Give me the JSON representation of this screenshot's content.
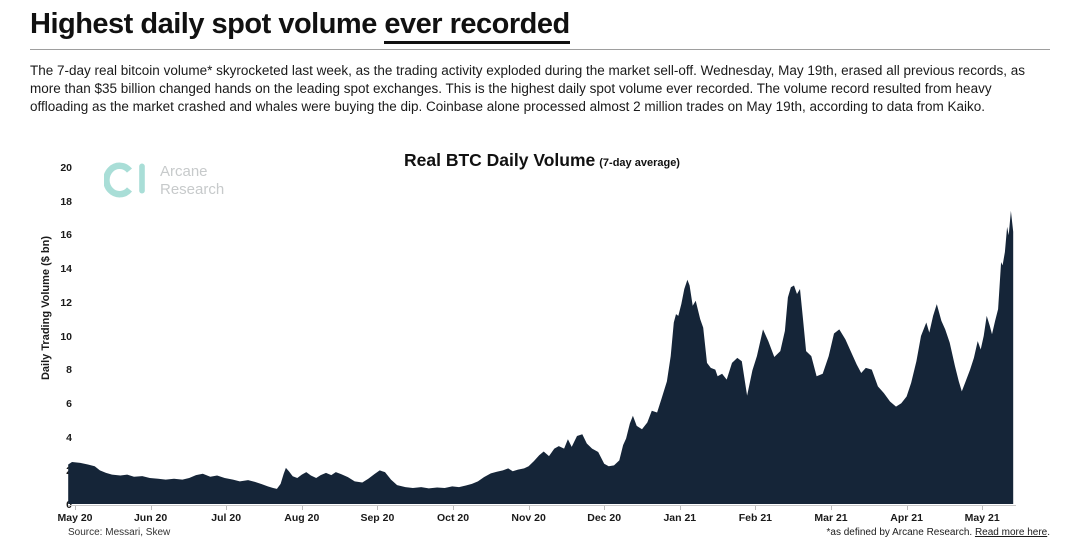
{
  "header": {
    "title_normal": "Highest daily spot volume ",
    "title_underlined": "ever recorded",
    "paragraph": "The 7-day real bitcoin volume* skyrocketed last week, as the trading activity exploded during the market sell-off. Wednesday, May 19th, erased all previous records, as more than $35 billion changed hands on the leading spot exchanges. This is the highest daily spot volume ever recorded. The volume record resulted from heavy offloading as the market crashed and whales were buying the dip. Coinbase alone processed almost 2 million trades on May 19th, according to data from Kaiko."
  },
  "logo": {
    "line1": "Arcane",
    "line2": "Research",
    "icon_color": "#a9ded7",
    "text_color": "#c7cacb"
  },
  "chart": {
    "title": "Real BTC Daily Volume",
    "subtitle": "(7-day average)",
    "source": "Source: Messari, Skew",
    "footnote_text": "*as defined by Arcane Research. ",
    "footnote_link": "Read more here",
    "footnote_period": "."
  },
  "chart_data": {
    "type": "area",
    "title": "Real BTC Daily Volume (7-day average)",
    "xlabel": "",
    "ylabel": "Daily Trading Volume ($ bn)",
    "ylim": [
      0,
      20
    ],
    "yticks": [
      0,
      2,
      4,
      6,
      8,
      10,
      12,
      14,
      16,
      18,
      20
    ],
    "categories": [
      "May 20",
      "Jun 20",
      "Jul 20",
      "Aug 20",
      "Sep 20",
      "Oct 20",
      "Nov 20",
      "Dec 20",
      "Jan 21",
      "Feb 21",
      "Mar 21",
      "Apr 21",
      "May 21"
    ],
    "x_unit": "months since May 2020 tick (fractional)",
    "fill_color": "#152538",
    "grid": false,
    "legend": "none",
    "peak_value": 17.45,
    "points": [
      [
        -0.09,
        2.35
      ],
      [
        -0.04,
        2.5
      ],
      [
        0.07,
        2.45
      ],
      [
        0.17,
        2.35
      ],
      [
        0.26,
        2.25
      ],
      [
        0.33,
        2.0
      ],
      [
        0.41,
        1.85
      ],
      [
        0.49,
        1.75
      ],
      [
        0.6,
        1.7
      ],
      [
        0.69,
        1.75
      ],
      [
        0.78,
        1.62
      ],
      [
        0.89,
        1.66
      ],
      [
        0.99,
        1.55
      ],
      [
        1.1,
        1.5
      ],
      [
        1.2,
        1.45
      ],
      [
        1.31,
        1.5
      ],
      [
        1.42,
        1.45
      ],
      [
        1.51,
        1.55
      ],
      [
        1.6,
        1.72
      ],
      [
        1.69,
        1.8
      ],
      [
        1.79,
        1.62
      ],
      [
        1.88,
        1.7
      ],
      [
        1.98,
        1.55
      ],
      [
        2.09,
        1.45
      ],
      [
        2.18,
        1.35
      ],
      [
        2.29,
        1.42
      ],
      [
        2.38,
        1.32
      ],
      [
        2.47,
        1.18
      ],
      [
        2.55,
        1.05
      ],
      [
        2.62,
        0.95
      ],
      [
        2.67,
        0.9
      ],
      [
        2.72,
        1.2
      ],
      [
        2.76,
        1.8
      ],
      [
        2.79,
        2.15
      ],
      [
        2.83,
        1.95
      ],
      [
        2.88,
        1.65
      ],
      [
        2.94,
        1.55
      ],
      [
        3.0,
        1.75
      ],
      [
        3.06,
        1.9
      ],
      [
        3.12,
        1.7
      ],
      [
        3.19,
        1.55
      ],
      [
        3.25,
        1.72
      ],
      [
        3.32,
        1.85
      ],
      [
        3.39,
        1.72
      ],
      [
        3.45,
        1.9
      ],
      [
        3.52,
        1.78
      ],
      [
        3.61,
        1.6
      ],
      [
        3.7,
        1.35
      ],
      [
        3.8,
        1.28
      ],
      [
        3.88,
        1.5
      ],
      [
        3.96,
        1.78
      ],
      [
        4.03,
        2.0
      ],
      [
        4.1,
        1.9
      ],
      [
        4.18,
        1.45
      ],
      [
        4.26,
        1.12
      ],
      [
        4.37,
        1.0
      ],
      [
        4.47,
        0.95
      ],
      [
        4.58,
        1.0
      ],
      [
        4.68,
        0.93
      ],
      [
        4.79,
        0.98
      ],
      [
        4.89,
        0.95
      ],
      [
        4.99,
        1.05
      ],
      [
        5.08,
        1.0
      ],
      [
        5.17,
        1.1
      ],
      [
        5.25,
        1.2
      ],
      [
        5.33,
        1.35
      ],
      [
        5.41,
        1.6
      ],
      [
        5.5,
        1.82
      ],
      [
        5.58,
        1.92
      ],
      [
        5.66,
        2.0
      ],
      [
        5.73,
        2.12
      ],
      [
        5.79,
        1.95
      ],
      [
        5.86,
        2.05
      ],
      [
        5.94,
        2.12
      ],
      [
        6.0,
        2.25
      ],
      [
        6.07,
        2.55
      ],
      [
        6.14,
        2.9
      ],
      [
        6.2,
        3.12
      ],
      [
        6.27,
        2.85
      ],
      [
        6.34,
        3.3
      ],
      [
        6.4,
        3.45
      ],
      [
        6.47,
        3.3
      ],
      [
        6.52,
        3.85
      ],
      [
        6.57,
        3.4
      ],
      [
        6.64,
        4.05
      ],
      [
        6.71,
        4.15
      ],
      [
        6.77,
        3.6
      ],
      [
        6.84,
        3.3
      ],
      [
        6.92,
        3.1
      ],
      [
        7.0,
        2.4
      ],
      [
        7.06,
        2.25
      ],
      [
        7.13,
        2.3
      ],
      [
        7.2,
        2.6
      ],
      [
        7.25,
        3.5
      ],
      [
        7.29,
        3.9
      ],
      [
        7.34,
        4.8
      ],
      [
        7.38,
        5.25
      ],
      [
        7.43,
        4.65
      ],
      [
        7.5,
        4.45
      ],
      [
        7.57,
        4.85
      ],
      [
        7.63,
        5.55
      ],
      [
        7.7,
        5.45
      ],
      [
        7.76,
        6.3
      ],
      [
        7.83,
        7.3
      ],
      [
        7.88,
        8.8
      ],
      [
        7.92,
        10.8
      ],
      [
        7.95,
        11.3
      ],
      [
        7.98,
        11.2
      ],
      [
        8.02,
        11.9
      ],
      [
        8.06,
        12.8
      ],
      [
        8.1,
        13.35
      ],
      [
        8.13,
        13.0
      ],
      [
        8.17,
        11.8
      ],
      [
        8.21,
        12.1
      ],
      [
        8.27,
        11.0
      ],
      [
        8.31,
        10.5
      ],
      [
        8.36,
        8.4
      ],
      [
        8.41,
        8.1
      ],
      [
        8.47,
        8.0
      ],
      [
        8.5,
        7.6
      ],
      [
        8.56,
        7.75
      ],
      [
        8.62,
        7.4
      ],
      [
        8.69,
        8.4
      ],
      [
        8.76,
        8.7
      ],
      [
        8.82,
        8.5
      ],
      [
        8.89,
        6.45
      ],
      [
        8.96,
        7.95
      ],
      [
        9.02,
        8.8
      ],
      [
        9.1,
        10.4
      ],
      [
        9.17,
        9.7
      ],
      [
        9.25,
        8.75
      ],
      [
        9.33,
        9.1
      ],
      [
        9.39,
        10.3
      ],
      [
        9.43,
        12.3
      ],
      [
        9.47,
        12.9
      ],
      [
        9.51,
        13.0
      ],
      [
        9.55,
        12.5
      ],
      [
        9.59,
        12.8
      ],
      [
        9.63,
        11.0
      ],
      [
        9.67,
        9.1
      ],
      [
        9.74,
        8.8
      ],
      [
        9.81,
        7.6
      ],
      [
        9.89,
        7.75
      ],
      [
        9.97,
        8.8
      ],
      [
        10.04,
        10.15
      ],
      [
        10.11,
        10.4
      ],
      [
        10.19,
        9.8
      ],
      [
        10.27,
        9.0
      ],
      [
        10.34,
        8.3
      ],
      [
        10.4,
        7.8
      ],
      [
        10.46,
        8.1
      ],
      [
        10.54,
        8.0
      ],
      [
        10.62,
        7.0
      ],
      [
        10.7,
        6.6
      ],
      [
        10.78,
        6.1
      ],
      [
        10.86,
        5.8
      ],
      [
        10.93,
        6.0
      ],
      [
        11.0,
        6.4
      ],
      [
        11.06,
        7.2
      ],
      [
        11.13,
        8.5
      ],
      [
        11.19,
        10.0
      ],
      [
        11.26,
        10.8
      ],
      [
        11.3,
        10.2
      ],
      [
        11.35,
        11.2
      ],
      [
        11.4,
        11.9
      ],
      [
        11.46,
        10.9
      ],
      [
        11.51,
        10.4
      ],
      [
        11.57,
        9.6
      ],
      [
        11.64,
        8.2
      ],
      [
        11.69,
        7.3
      ],
      [
        11.73,
        6.7
      ],
      [
        11.79,
        7.4
      ],
      [
        11.84,
        8.0
      ],
      [
        11.89,
        8.7
      ],
      [
        11.94,
        9.7
      ],
      [
        11.98,
        9.2
      ],
      [
        12.02,
        10.0
      ],
      [
        12.06,
        11.2
      ],
      [
        12.1,
        10.6
      ],
      [
        12.13,
        10.1
      ],
      [
        12.17,
        10.9
      ],
      [
        12.21,
        11.6
      ],
      [
        12.25,
        14.4
      ],
      [
        12.27,
        14.2
      ],
      [
        12.3,
        15.0
      ],
      [
        12.33,
        16.5
      ],
      [
        12.35,
        16.0
      ],
      [
        12.38,
        17.45
      ],
      [
        12.41,
        16.2
      ]
    ]
  }
}
